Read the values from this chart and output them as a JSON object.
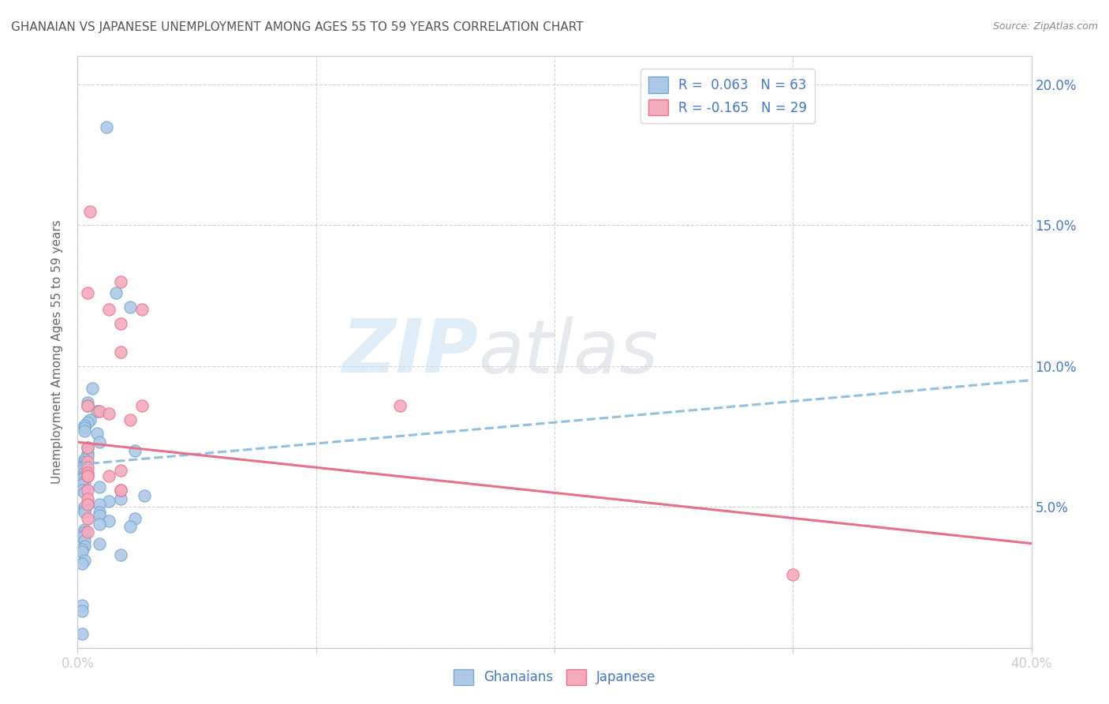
{
  "title": "GHANAIAN VS JAPANESE UNEMPLOYMENT AMONG AGES 55 TO 59 YEARS CORRELATION CHART",
  "source": "Source: ZipAtlas.com",
  "ylabel": "Unemployment Among Ages 55 to 59 years",
  "xmin": 0.0,
  "xmax": 0.4,
  "ymin": 0.0,
  "ymax": 0.21,
  "yticks": [
    0.0,
    0.05,
    0.1,
    0.15,
    0.2
  ],
  "right_ytick_labels": [
    "",
    "5.0%",
    "10.0%",
    "15.0%",
    "20.0%"
  ],
  "xticks": [
    0.0,
    0.1,
    0.2,
    0.3,
    0.4
  ],
  "xtick_labels": [
    "0.0%",
    "",
    "",
    "",
    "40.0%"
  ],
  "watermark_zip": "ZIP",
  "watermark_atlas": "atlas",
  "legend_r1": "R =  0.063",
  "legend_n1": "N = 63",
  "legend_r2": "R = -0.165",
  "legend_n2": "N = 29",
  "ghanaian_color": "#aec9e8",
  "japanese_color": "#f5abbe",
  "ghanaian_edge_color": "#6fa8d0",
  "japanese_edge_color": "#e8708a",
  "ghanaian_trend_color": "#90bfdf",
  "japanese_trend_color": "#e8708a",
  "axis_label_color": "#4477cc",
  "grid_color": "#cccccc",
  "title_color": "#555555",
  "ghanaian_x": [
    0.012,
    0.022,
    0.016,
    0.006,
    0.004,
    0.004,
    0.008,
    0.005,
    0.004,
    0.003,
    0.003,
    0.003,
    0.008,
    0.009,
    0.004,
    0.024,
    0.004,
    0.004,
    0.003,
    0.003,
    0.003,
    0.002,
    0.003,
    0.002,
    0.002,
    0.003,
    0.003,
    0.002,
    0.003,
    0.002,
    0.009,
    0.003,
    0.002,
    0.003,
    0.028,
    0.018,
    0.013,
    0.009,
    0.004,
    0.003,
    0.003,
    0.009,
    0.003,
    0.009,
    0.024,
    0.013,
    0.009,
    0.022,
    0.003,
    0.003,
    0.003,
    0.002,
    0.003,
    0.009,
    0.003,
    0.002,
    0.002,
    0.018,
    0.003,
    0.002,
    0.002,
    0.002,
    0.002
  ],
  "ghanaian_y": [
    0.185,
    0.121,
    0.126,
    0.092,
    0.087,
    0.086,
    0.084,
    0.081,
    0.08,
    0.079,
    0.078,
    0.077,
    0.076,
    0.073,
    0.071,
    0.07,
    0.069,
    0.068,
    0.067,
    0.066,
    0.065,
    0.064,
    0.064,
    0.063,
    0.063,
    0.062,
    0.061,
    0.06,
    0.059,
    0.058,
    0.057,
    0.056,
    0.056,
    0.055,
    0.054,
    0.053,
    0.052,
    0.051,
    0.051,
    0.05,
    0.049,
    0.048,
    0.048,
    0.047,
    0.046,
    0.045,
    0.044,
    0.043,
    0.042,
    0.041,
    0.04,
    0.039,
    0.038,
    0.037,
    0.036,
    0.035,
    0.034,
    0.033,
    0.031,
    0.03,
    0.015,
    0.013,
    0.005
  ],
  "japanese_x": [
    0.005,
    0.018,
    0.004,
    0.013,
    0.018,
    0.018,
    0.027,
    0.004,
    0.009,
    0.013,
    0.022,
    0.027,
    0.004,
    0.004,
    0.004,
    0.018,
    0.004,
    0.004,
    0.013,
    0.018,
    0.135,
    0.004,
    0.018,
    0.004,
    0.004,
    0.004,
    0.004,
    0.3,
    0.004
  ],
  "japanese_y": [
    0.155,
    0.13,
    0.126,
    0.12,
    0.115,
    0.105,
    0.12,
    0.086,
    0.084,
    0.083,
    0.081,
    0.086,
    0.071,
    0.066,
    0.064,
    0.063,
    0.062,
    0.061,
    0.061,
    0.056,
    0.086,
    0.061,
    0.056,
    0.056,
    0.053,
    0.051,
    0.046,
    0.026,
    0.041
  ],
  "blue_trend_x": [
    0.0,
    0.4
  ],
  "blue_trend_y": [
    0.065,
    0.095
  ],
  "pink_trend_x": [
    0.0,
    0.4
  ],
  "pink_trend_y": [
    0.073,
    0.037
  ]
}
